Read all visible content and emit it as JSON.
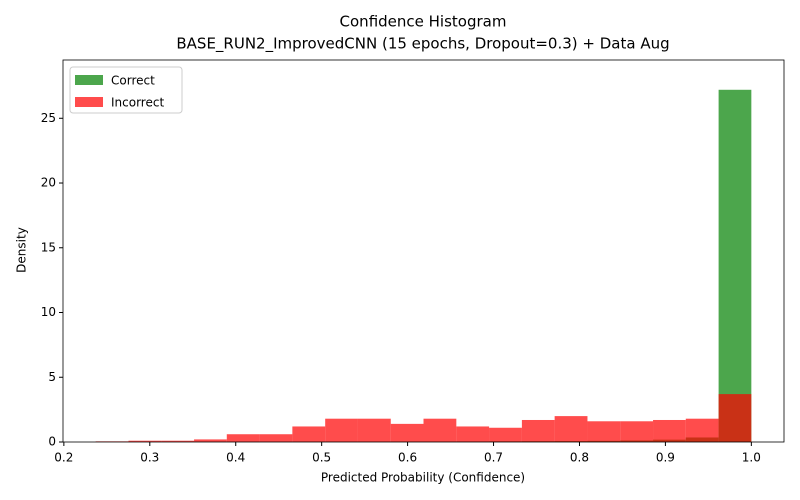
{
  "chart_data": {
    "type": "histogram",
    "title": "Confidence Histogram",
    "subtitle": "BASE_RUN2_ImprovedCNN (15 epochs, Dropout=0.3) + Data Aug",
    "x_label": "Predicted Probability (Confidence)",
    "y_label": "Density",
    "bins": [
      0.237,
      0.2752,
      0.3133,
      0.3515,
      0.3896,
      0.4278,
      0.4659,
      0.5041,
      0.5422,
      0.5804,
      0.6185,
      0.6567,
      0.6948,
      0.733,
      0.7711,
      0.8093,
      0.8474,
      0.8856,
      0.9237,
      0.9619,
      1.0
    ],
    "series": [
      {
        "name": "Correct",
        "color": "#008000",
        "opacity": 0.7,
        "values": [
          0.01,
          0.01,
          0.01,
          0.01,
          0.01,
          0.01,
          0.02,
          0.02,
          0.02,
          0.03,
          0.03,
          0.04,
          0.05,
          0.06,
          0.07,
          0.09,
          0.12,
          0.18,
          0.35,
          27.2
        ]
      },
      {
        "name": "Incorrect",
        "color": "#ff0000",
        "opacity": 0.7,
        "values": [
          0.05,
          0.1,
          0.1,
          0.2,
          0.6,
          0.6,
          1.2,
          1.8,
          1.8,
          1.4,
          1.8,
          1.2,
          1.1,
          1.7,
          2.0,
          1.6,
          1.6,
          1.7,
          1.8,
          3.7
        ]
      }
    ],
    "xlim": [
      0.199,
      1.038
    ],
    "ylim": [
      0,
      29.5
    ],
    "xticks": [
      0.2,
      0.3,
      0.4,
      0.5,
      0.6,
      0.7,
      0.8,
      0.9,
      {
        "value": 1,
        "label": "1.0"
      }
    ],
    "yticks": [
      0,
      5,
      10,
      15,
      20,
      25
    ],
    "legend": "upper left"
  }
}
